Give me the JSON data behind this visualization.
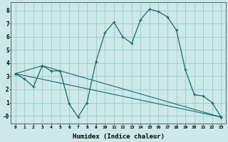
{
  "xlabel": "Humidex (Indice chaleur)",
  "xlim": [
    -0.5,
    23.5
  ],
  "ylim": [
    -0.6,
    8.6
  ],
  "xticks": [
    0,
    1,
    2,
    3,
    4,
    5,
    6,
    7,
    8,
    9,
    10,
    11,
    12,
    13,
    14,
    15,
    16,
    17,
    18,
    19,
    20,
    21,
    22,
    23
  ],
  "yticks": [
    0,
    1,
    2,
    3,
    4,
    5,
    6,
    7,
    8
  ],
  "ytick_labels": [
    "-0",
    "1",
    "2",
    "3",
    "4",
    "5",
    "6",
    "7",
    "8"
  ],
  "background_color": "#cce8e8",
  "grid_color": "#99cccc",
  "line_color": "#1a6b6b",
  "line1_x": [
    0,
    1,
    2,
    3,
    4,
    5,
    6,
    7,
    8,
    9,
    10,
    11,
    12,
    13,
    14,
    15,
    16,
    17,
    18,
    19,
    20,
    21,
    22,
    23
  ],
  "line1_y": [
    3.2,
    2.8,
    2.2,
    3.8,
    3.4,
    3.4,
    0.9,
    -0.1,
    1.0,
    4.1,
    6.3,
    7.1,
    6.0,
    5.5,
    7.3,
    8.1,
    7.9,
    7.5,
    6.5,
    3.5,
    1.6,
    1.5,
    1.0,
    -0.1
  ],
  "line2_x": [
    0,
    3,
    23
  ],
  "line2_y": [
    3.2,
    3.8,
    -0.1
  ],
  "line3_x": [
    0,
    23
  ],
  "line3_y": [
    3.2,
    -0.1
  ]
}
